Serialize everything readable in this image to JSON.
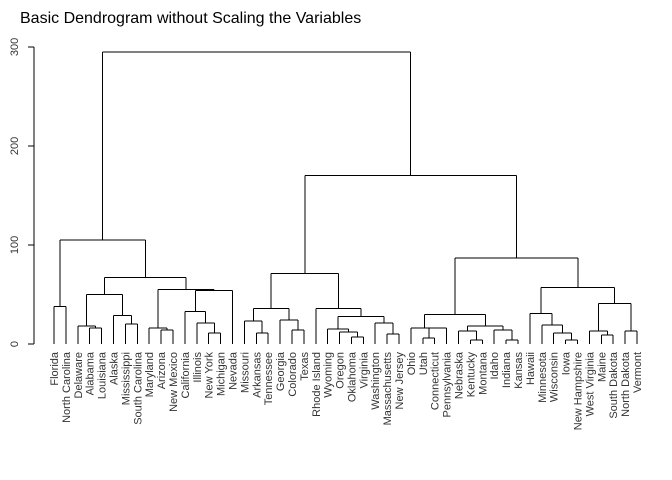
{
  "chart_data": {
    "type": "dendrogram",
    "title": "Basic Dendrogram without Scaling the Variables",
    "ylim": [
      0,
      300
    ],
    "yticks": [
      0,
      100,
      200,
      300
    ],
    "grid": false,
    "leaves": [
      "Florida",
      "North Carolina",
      "Delaware",
      "Alabama",
      "Louisiana",
      "Alaska",
      "Mississippi",
      "South Carolina",
      "Maryland",
      "Arizona",
      "New Mexico",
      "California",
      "Illinois",
      "New York",
      "Michigan",
      "Nevada",
      "Missouri",
      "Arkansas",
      "Tennessee",
      "Georgia",
      "Colorado",
      "Texas",
      "Rhode Island",
      "Wyoming",
      "Oregon",
      "Oklahoma",
      "Virginia",
      "Washington",
      "Massachusetts",
      "New Jersey",
      "Ohio",
      "Utah",
      "Connecticut",
      "Pennsylvania",
      "Nebraska",
      "Kentucky",
      "Montana",
      "Idaho",
      "Indiana",
      "Kansas",
      "Hawaii",
      "Minnesota",
      "Wisconsin",
      "Iowa",
      "New Hampshire",
      "West Virginia",
      "Maine",
      "South Dakota",
      "North Dakota",
      "Vermont"
    ],
    "merges": [
      [
        -1,
        -2,
        38
      ],
      [
        -4,
        -5,
        16
      ],
      [
        -3,
        1,
        18
      ],
      [
        -7,
        -8,
        20
      ],
      [
        -6,
        3,
        29
      ],
      [
        2,
        4,
        50
      ],
      [
        -10,
        -11,
        14
      ],
      [
        -9,
        6,
        16
      ],
      [
        -14,
        -15,
        11
      ],
      [
        -13,
        8,
        21
      ],
      [
        -12,
        9,
        33
      ],
      [
        -16,
        10,
        54
      ],
      [
        7,
        11,
        55
      ],
      [
        5,
        12,
        67
      ],
      [
        0,
        13,
        105
      ],
      [
        -18,
        -19,
        11
      ],
      [
        -17,
        15,
        23
      ],
      [
        -21,
        -22,
        14
      ],
      [
        -20,
        17,
        24
      ],
      [
        16,
        18,
        36
      ],
      [
        -26,
        -27,
        7
      ],
      [
        -25,
        20,
        12
      ],
      [
        -24,
        21,
        15
      ],
      [
        -29,
        -30,
        10
      ],
      [
        -28,
        23,
        21
      ],
      [
        22,
        24,
        28
      ],
      [
        -23,
        25,
        36
      ],
      [
        19,
        26,
        71
      ],
      [
        -32,
        -33,
        6
      ],
      [
        -34,
        28,
        16
      ],
      [
        -31,
        29,
        16
      ],
      [
        -36,
        -37,
        4
      ],
      [
        -35,
        31,
        13
      ],
      [
        -39,
        -40,
        4
      ],
      [
        -38,
        33,
        14
      ],
      [
        32,
        34,
        18
      ],
      [
        30,
        35,
        30
      ],
      [
        -44,
        -45,
        4
      ],
      [
        -43,
        37,
        11
      ],
      [
        -42,
        38,
        19
      ],
      [
        -41,
        39,
        31
      ],
      [
        -47,
        -48,
        9
      ],
      [
        -46,
        41,
        13
      ],
      [
        -49,
        -50,
        13
      ],
      [
        42,
        43,
        41
      ],
      [
        40,
        44,
        57
      ],
      [
        36,
        45,
        87
      ],
      [
        27,
        46,
        170
      ],
      [
        14,
        47,
        295
      ]
    ]
  }
}
